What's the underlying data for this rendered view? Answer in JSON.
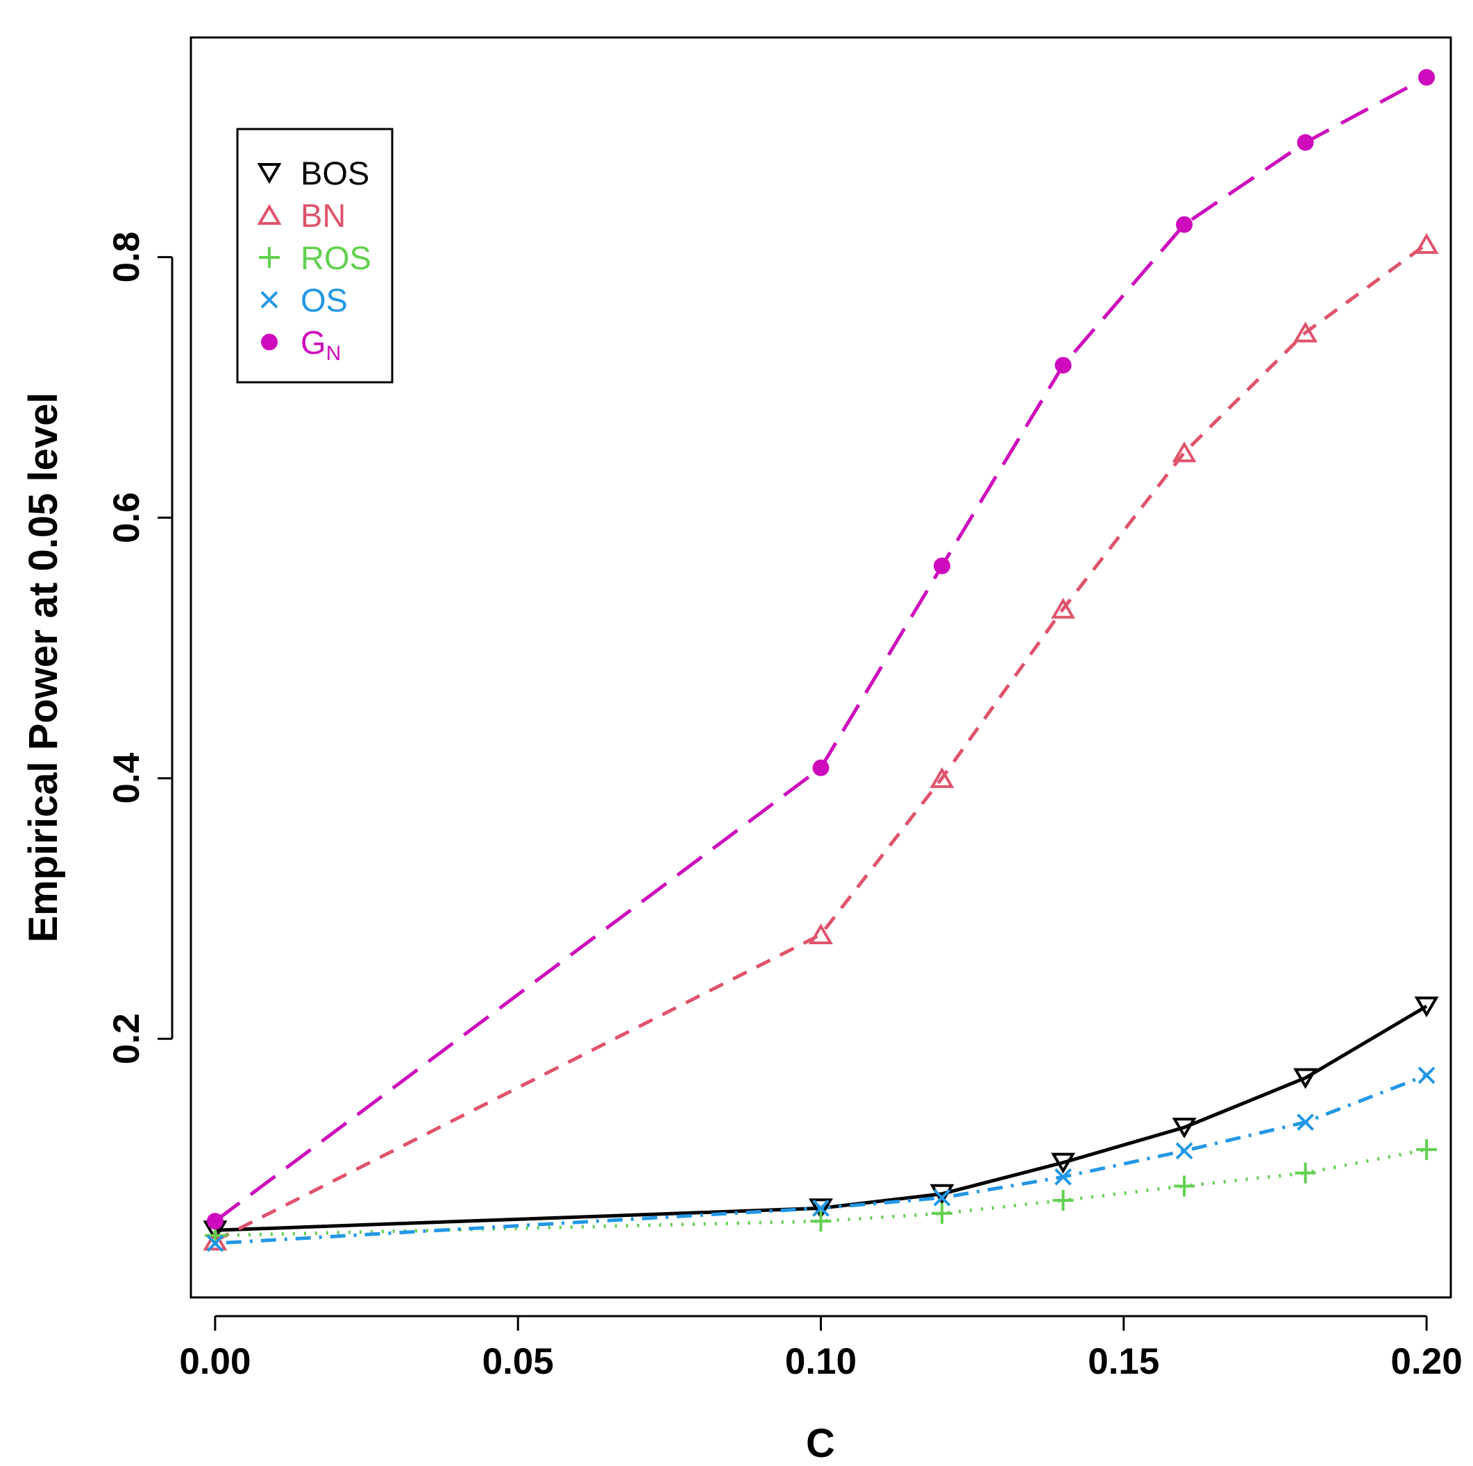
{
  "chart_data": {
    "type": "line",
    "title": "",
    "xlabel": "C",
    "ylabel": "Empirical Power at 0.05 level",
    "xlim": [
      -0.004,
      0.204
    ],
    "ylim": [
      0.0015,
      0.9686
    ],
    "x_ticks": [
      0.0,
      0.05,
      0.1,
      0.15,
      0.2
    ],
    "x_tick_labels": [
      "0.00",
      "0.05",
      "0.10",
      "0.15",
      "0.20"
    ],
    "y_ticks": [
      0.2,
      0.4,
      0.6,
      0.8
    ],
    "y_tick_labels": [
      "0.2",
      "0.4",
      "0.6",
      "0.8"
    ],
    "grid": false,
    "legend_position": "top-left",
    "x": [
      0.0,
      0.1,
      0.12,
      0.14,
      0.16,
      0.18,
      0.2
    ],
    "series": [
      {
        "name": "BOS",
        "color": "#000000",
        "marker": "triangle-down",
        "line": "solid",
        "values": [
          0.053,
          0.07,
          0.081,
          0.105,
          0.132,
          0.17,
          0.225
        ]
      },
      {
        "name": "BN",
        "color": "#DF536B",
        "marker": "triangle-up",
        "line": "dashed",
        "values": [
          0.045,
          0.28,
          0.4,
          0.53,
          0.65,
          0.742,
          0.81
        ]
      },
      {
        "name": "ROS",
        "color": "#61D04F",
        "marker": "plus",
        "line": "dotted",
        "values": [
          0.049,
          0.06,
          0.066,
          0.076,
          0.087,
          0.097,
          0.115
        ]
      },
      {
        "name": "OS",
        "color": "#2297E6",
        "marker": "cross",
        "line": "dotdash",
        "values": [
          0.043,
          0.07,
          0.078,
          0.094,
          0.114,
          0.136,
          0.172
        ]
      },
      {
        "name": "G",
        "name_subscript": "N",
        "color": "#CD0BBC",
        "marker": "circle",
        "line": "longdash",
        "values": [
          0.06,
          0.408,
          0.563,
          0.717,
          0.825,
          0.888,
          0.938
        ]
      }
    ]
  }
}
